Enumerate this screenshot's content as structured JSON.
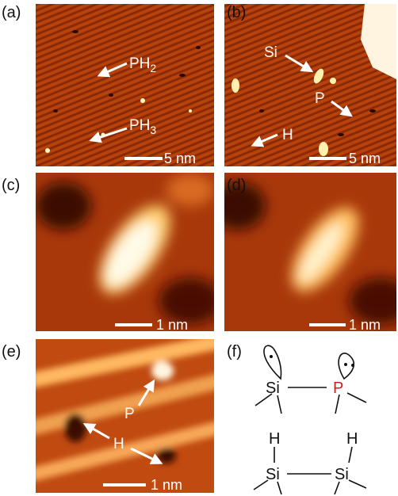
{
  "panels": [
    {
      "label": "(a)",
      "annotations": [
        {
          "text": "PH",
          "sub": "2"
        },
        {
          "text": "PH",
          "sub": "3"
        }
      ],
      "scale_bar": "5 nm"
    },
    {
      "label": "(b)",
      "annotations": [
        "Si",
        "P",
        "H"
      ],
      "scale_bar": "5 nm"
    },
    {
      "label": "(c)",
      "scale_bar": "1 nm"
    },
    {
      "label": "(d)",
      "scale_bar": "1 nm"
    },
    {
      "label": "(e)",
      "annotations": [
        "P",
        "H"
      ],
      "scale_bar": "1 nm"
    },
    {
      "label": "(f)",
      "diagram": {
        "top": {
          "left": "Si",
          "right": "P"
        },
        "bottom": {
          "left_h": "H",
          "right_h": "H",
          "left": "Si",
          "right": "Si"
        }
      }
    }
  ]
}
